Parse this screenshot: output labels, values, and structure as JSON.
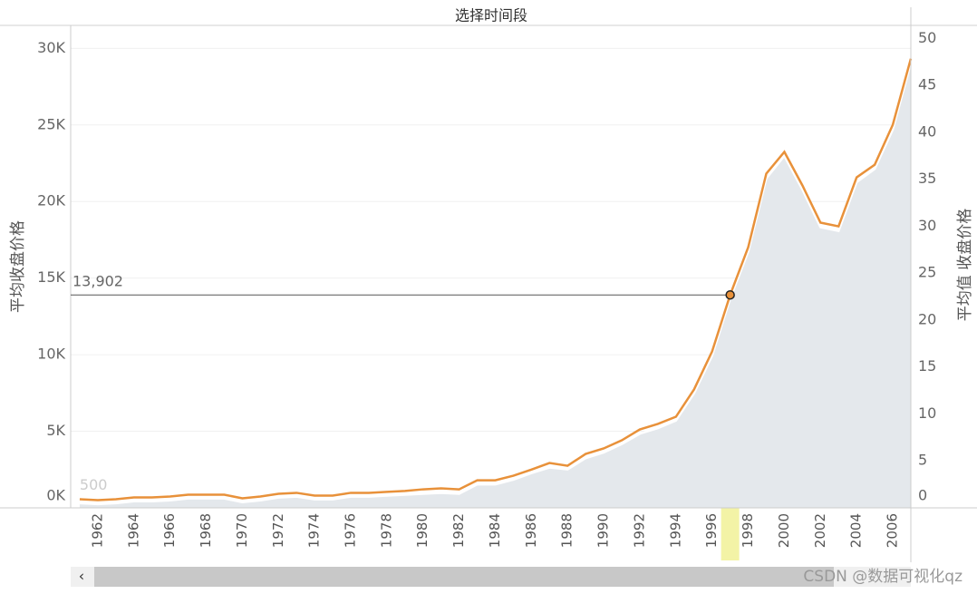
{
  "chart_data": {
    "type": "line",
    "title": "选择时间段",
    "y_label": "平均收盘价格",
    "y2_label": "平均值 收盘价格",
    "x": [
      1961,
      1962,
      1963,
      1964,
      1965,
      1966,
      1967,
      1968,
      1969,
      1970,
      1971,
      1972,
      1973,
      1974,
      1975,
      1976,
      1977,
      1978,
      1979,
      1980,
      1981,
      1982,
      1983,
      1984,
      1985,
      1986,
      1987,
      1988,
      1989,
      1990,
      1991,
      1992,
      1993,
      1994,
      1995,
      1996,
      1997,
      1998,
      1999,
      2000,
      2001,
      2002,
      2003,
      2004,
      2005,
      2006,
      2007
    ],
    "series": [
      {
        "type": "line",
        "color": "#e8913a",
        "values": [
          560,
          500,
          560,
          680,
          680,
          740,
          860,
          860,
          860,
          620,
          740,
          920,
          980,
          800,
          800,
          980,
          980,
          1040,
          1100,
          1210,
          1270,
          1210,
          1800,
          1800,
          2100,
          2500,
          2930,
          2750,
          3520,
          3880,
          4410,
          5120,
          5480,
          5950,
          7730,
          10210,
          13902,
          17020,
          21820,
          23240,
          21050,
          18620,
          18380,
          21580,
          22400,
          25010,
          29330
        ]
      },
      {
        "type": "area",
        "axis": "y2",
        "color": "#e4e8ec",
        "values": [
          0.5,
          0.4,
          0.5,
          0.7,
          0.7,
          0.8,
          1.0,
          1.0,
          1.0,
          0.6,
          0.8,
          1.1,
          1.2,
          0.9,
          0.9,
          1.2,
          1.2,
          1.3,
          1.4,
          1.5,
          1.6,
          1.5,
          2.5,
          2.5,
          3.0,
          3.7,
          4.3,
          4.1,
          5.3,
          5.9,
          6.8,
          7.9,
          8.5,
          9.3,
          12.2,
          16.2,
          22.3,
          27.3,
          35.1,
          37.5,
          33.9,
          29.9,
          29.5,
          34.7,
          36.1,
          40.3,
          47.4
        ]
      }
    ],
    "xlim": [
      1960.5,
      2007
    ],
    "xticks": [
      1962,
      1964,
      1966,
      1968,
      1970,
      1972,
      1974,
      1976,
      1978,
      1980,
      1982,
      1984,
      1986,
      1988,
      1990,
      1992,
      1994,
      1996,
      1998,
      2000,
      2002,
      2004,
      2006
    ],
    "ylim": [
      0,
      31500
    ],
    "yticks": [
      {
        "value": 0,
        "label": "0K"
      },
      {
        "value": 5000,
        "label": "5K"
      },
      {
        "value": 10000,
        "label": "10K"
      },
      {
        "value": 15000,
        "label": "15K"
      },
      {
        "value": 20000,
        "label": "20K"
      },
      {
        "value": 25000,
        "label": "25K"
      },
      {
        "value": 30000,
        "label": "30K"
      }
    ],
    "y2lim": [
      0,
      51.4
    ],
    "y2ticks": [
      0,
      5,
      10,
      15,
      20,
      25,
      30,
      35,
      40,
      45,
      50
    ],
    "grid": true,
    "reference_line": {
      "value": 13902,
      "label": "13,902",
      "x": 1997
    },
    "highlight_x": 1997,
    "min_annotation": {
      "x": 1962,
      "y": 500
    },
    "watermark": "CSDN @数据可视化qz"
  }
}
